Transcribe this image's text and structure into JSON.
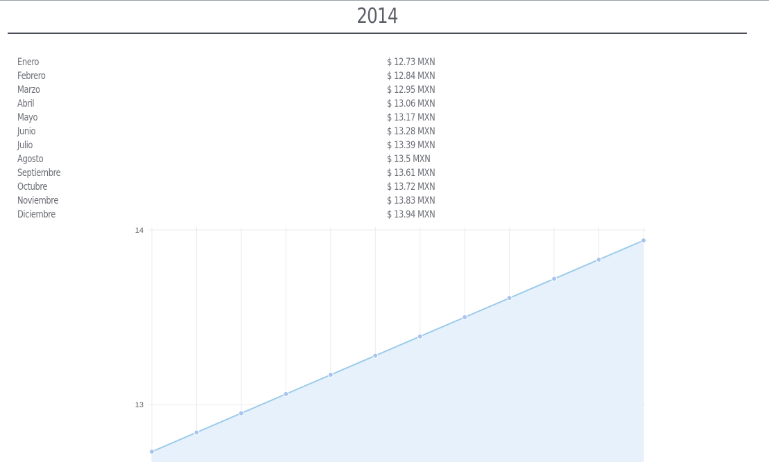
{
  "title": "2014",
  "rates": [
    {
      "month": "Enero",
      "amount": "$ 12.73 MXN"
    },
    {
      "month": "Febrero",
      "amount": "$ 12.84 MXN"
    },
    {
      "month": "Marzo",
      "amount": "$ 12.95 MXN"
    },
    {
      "month": "Abril",
      "amount": "$ 13.06 MXN"
    },
    {
      "month": "Mayo",
      "amount": "$ 13.17 MXN"
    },
    {
      "month": "Junio",
      "amount": "$ 13.28 MXN"
    },
    {
      "month": "Julio",
      "amount": "$ 13.39 MXN"
    },
    {
      "month": "Agosto",
      "amount": "$ 13.5 MXN"
    },
    {
      "month": "Septiembre",
      "amount": "$ 13.61 MXN"
    },
    {
      "month": "Octubre",
      "amount": "$ 13.72 MXN"
    },
    {
      "month": "Noviembre",
      "amount": "$ 13.83 MXN"
    },
    {
      "month": "Diciembre",
      "amount": "$ 13.94 MXN"
    }
  ],
  "chart_data": {
    "type": "area",
    "categories": [
      "Enero",
      "Febrero",
      "Marzo",
      "Abril",
      "Mayo",
      "Junio",
      "Julio",
      "Agosto",
      "Septiembre",
      "Octubre",
      "Noviembre",
      "Diciembre"
    ],
    "series": [
      {
        "values": [
          12.73,
          12.84,
          12.95,
          13.06,
          13.17,
          13.28,
          13.39,
          13.5,
          13.61,
          13.72,
          13.83,
          13.94
        ]
      }
    ],
    "yticks": [
      "13",
      "14"
    ],
    "ylim": [
      12.4,
      14
    ],
    "grid": true,
    "x_labels_visible": false,
    "colors": {
      "line": "#9ccbea",
      "fill": "#e6f1fb",
      "point": "#a8c4ee",
      "grid": "#ebebeb"
    }
  }
}
